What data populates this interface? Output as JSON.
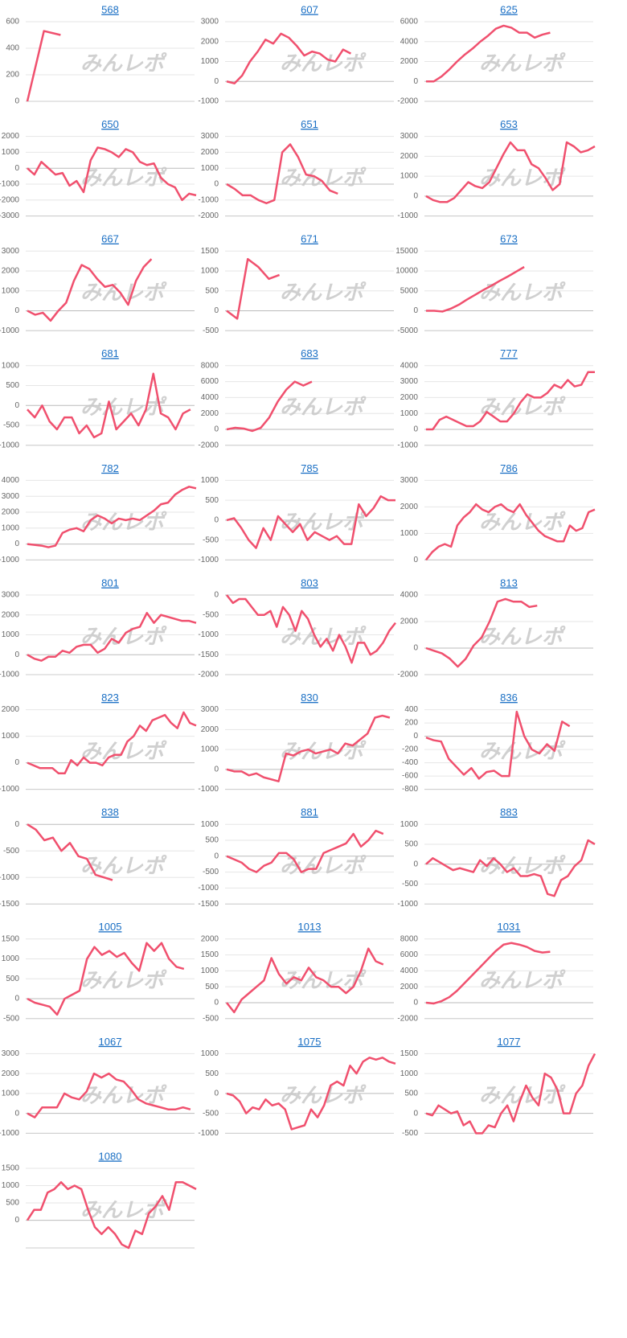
{
  "watermark": "みんレポ",
  "chart_data": [
    {
      "type": "line",
      "title": "568",
      "ylim": [
        0,
        600
      ],
      "yticks": [
        0,
        200,
        400,
        600
      ],
      "grid": true,
      "color": "#f0506e",
      "values": [
        0,
        530,
        500
      ]
    },
    {
      "type": "line",
      "title": "607",
      "ylim": [
        -1000,
        3000
      ],
      "yticks": [
        -1000,
        0,
        1000,
        2000,
        3000
      ],
      "grid": true,
      "color": "#f0506e",
      "values": [
        0,
        -100,
        300,
        1000,
        1500,
        2100,
        1900,
        2400,
        2200,
        1800,
        1300,
        1500,
        1400,
        1100,
        1000,
        1600,
        1400
      ]
    },
    {
      "type": "line",
      "title": "625",
      "ylim": [
        -2000,
        6000
      ],
      "yticks": [
        -2000,
        0,
        2000,
        4000,
        6000
      ],
      "grid": true,
      "color": "#f0506e",
      "values": [
        0,
        0,
        500,
        1200,
        2000,
        2700,
        3300,
        4000,
        4600,
        5300,
        5600,
        5400,
        4900,
        4900,
        4400,
        4700,
        4900
      ]
    },
    {
      "type": "line",
      "title": "650",
      "ylim": [
        -3000,
        2000
      ],
      "yticks": [
        -3000,
        -2000,
        -1000,
        0,
        1000,
        2000
      ],
      "grid": true,
      "color": "#f0506e",
      "values": [
        0,
        -400,
        400,
        0,
        -400,
        -300,
        -1100,
        -800,
        -1500,
        500,
        1300,
        1200,
        1000,
        700,
        1200,
        1000,
        400,
        200,
        300,
        -600,
        -1000,
        -1200,
        -2000,
        -1600,
        -1700
      ]
    },
    {
      "type": "line",
      "title": "651",
      "ylim": [
        -2000,
        3000
      ],
      "yticks": [
        -2000,
        -1000,
        0,
        1000,
        2000,
        3000
      ],
      "grid": true,
      "color": "#f0506e",
      "values": [
        0,
        -300,
        -700,
        -700,
        -1000,
        -1200,
        -1000,
        2000,
        2500,
        1700,
        600,
        500,
        200,
        -400,
        -600
      ]
    },
    {
      "type": "line",
      "title": "653",
      "ylim": [
        -1000,
        3000
      ],
      "yticks": [
        -1000,
        0,
        1000,
        2000,
        3000
      ],
      "grid": true,
      "color": "#f0506e",
      "values": [
        0,
        -200,
        -300,
        -300,
        -100,
        300,
        700,
        500,
        400,
        700,
        1400,
        2100,
        2700,
        2300,
        2300,
        1600,
        1400,
        900,
        300,
        600,
        2700,
        2500,
        2200,
        2300,
        2500
      ]
    },
    {
      "type": "line",
      "title": "667",
      "ylim": [
        -1000,
        3000
      ],
      "yticks": [
        -1000,
        0,
        1000,
        2000,
        3000
      ],
      "grid": true,
      "color": "#f0506e",
      "values": [
        0,
        -200,
        -100,
        -500,
        0,
        400,
        1500,
        2300,
        2100,
        1600,
        1200,
        1300,
        900,
        300,
        1500,
        2200,
        2600
      ]
    },
    {
      "type": "line",
      "title": "671",
      "ylim": [
        -500,
        1500
      ],
      "yticks": [
        -500,
        0,
        500,
        1000,
        1500
      ],
      "grid": true,
      "color": "#f0506e",
      "values": [
        0,
        -200,
        1300,
        1100,
        800,
        900
      ]
    },
    {
      "type": "line",
      "title": "673",
      "ylim": [
        -5000,
        15000
      ],
      "yticks": [
        -5000,
        0,
        5000,
        10000,
        15000
      ],
      "grid": true,
      "color": "#f0506e",
      "values": [
        0,
        0,
        -200,
        500,
        1500,
        2800,
        4000,
        5200,
        6300,
        7500,
        8600,
        9800,
        11000
      ]
    },
    {
      "type": "line",
      "title": "681",
      "ylim": [
        -1000,
        1000
      ],
      "yticks": [
        -1000,
        -500,
        0,
        500,
        1000
      ],
      "grid": true,
      "color": "#f0506e",
      "values": [
        -100,
        -300,
        0,
        -400,
        -600,
        -300,
        -300,
        -700,
        -500,
        -800,
        -700,
        100,
        -600,
        -400,
        -200,
        -500,
        -100,
        800,
        -200,
        -300,
        -600,
        -200,
        -100
      ]
    },
    {
      "type": "line",
      "title": "683",
      "ylim": [
        -2000,
        8000
      ],
      "yticks": [
        -2000,
        0,
        2000,
        4000,
        6000,
        8000
      ],
      "grid": true,
      "color": "#f0506e",
      "values": [
        0,
        200,
        100,
        -200,
        200,
        1500,
        3500,
        5000,
        6000,
        5500,
        6000
      ]
    },
    {
      "type": "line",
      "title": "777",
      "ylim": [
        -1000,
        4000
      ],
      "yticks": [
        -1000,
        0,
        1000,
        2000,
        3000,
        4000
      ],
      "grid": true,
      "color": "#f0506e",
      "values": [
        0,
        0,
        600,
        800,
        600,
        400,
        200,
        200,
        500,
        1100,
        800,
        500,
        500,
        1000,
        1700,
        2200,
        2000,
        2000,
        2300,
        2800,
        2600,
        3100,
        2700,
        2800,
        3600,
        3600
      ]
    },
    {
      "type": "line",
      "title": "782",
      "ylim": [
        -1000,
        4000
      ],
      "yticks": [
        -1000,
        0,
        1000,
        2000,
        3000,
        4000
      ],
      "grid": true,
      "color": "#f0506e",
      "values": [
        0,
        -50,
        -100,
        -200,
        -100,
        700,
        900,
        1000,
        800,
        1500,
        1800,
        1600,
        1300,
        1600,
        1500,
        1600,
        1500,
        1800,
        2100,
        2500,
        2600,
        3100,
        3400,
        3600,
        3500
      ]
    },
    {
      "type": "line",
      "title": "785",
      "ylim": [
        -1000,
        1000
      ],
      "yticks": [
        -1000,
        -500,
        0,
        500,
        1000
      ],
      "grid": true,
      "color": "#f0506e",
      "values": [
        0,
        50,
        -200,
        -500,
        -700,
        -200,
        -500,
        100,
        -100,
        -300,
        -100,
        -500,
        -300,
        -400,
        -500,
        -400,
        -600,
        -600,
        400,
        100,
        300,
        600,
        500,
        500
      ]
    },
    {
      "type": "line",
      "title": "786",
      "ylim": [
        0,
        3000
      ],
      "yticks": [
        0,
        1000,
        2000,
        3000
      ],
      "grid": true,
      "color": "#f0506e",
      "values": [
        0,
        300,
        500,
        600,
        500,
        1300,
        1600,
        1800,
        2100,
        1900,
        1800,
        2000,
        2100,
        1900,
        1800,
        2100,
        1700,
        1400,
        1100,
        900,
        800,
        700,
        700,
        1300,
        1100,
        1200,
        1800,
        1900
      ]
    },
    {
      "type": "line",
      "title": "801",
      "ylim": [
        -1000,
        3000
      ],
      "yticks": [
        -1000,
        0,
        1000,
        2000,
        3000
      ],
      "grid": true,
      "color": "#f0506e",
      "values": [
        0,
        -200,
        -300,
        -100,
        -100,
        200,
        100,
        400,
        500,
        500,
        100,
        300,
        800,
        600,
        1100,
        1300,
        1400,
        2100,
        1600,
        2000,
        1900,
        1800,
        1700,
        1700,
        1600
      ]
    },
    {
      "type": "line",
      "title": "803",
      "ylim": [
        -2000,
        0
      ],
      "yticks": [
        -2000,
        -1500,
        -1000,
        -500,
        0
      ],
      "grid": true,
      "color": "#f0506e",
      "values": [
        0,
        -200,
        -100,
        -100,
        -300,
        -500,
        -500,
        -400,
        -800,
        -300,
        -500,
        -900,
        -400,
        -600,
        -1000,
        -1300,
        -1100,
        -1400,
        -1000,
        -1300,
        -1700,
        -1200,
        -1200,
        -1500,
        -1400,
        -1200,
        -900,
        -700
      ]
    },
    {
      "type": "line",
      "title": "813",
      "ylim": [
        -2000,
        4000
      ],
      "yticks": [
        -2000,
        0,
        2000,
        4000
      ],
      "grid": true,
      "color": "#f0506e",
      "values": [
        0,
        -200,
        -400,
        -800,
        -1400,
        -800,
        200,
        800,
        2000,
        3500,
        3700,
        3500,
        3500,
        3100,
        3200
      ]
    },
    {
      "type": "line",
      "title": "823",
      "ylim": [
        -1000,
        2000
      ],
      "yticks": [
        -1000,
        0,
        1000,
        2000
      ],
      "grid": true,
      "color": "#f0506e",
      "values": [
        0,
        -100,
        -200,
        -200,
        -200,
        -400,
        -400,
        100,
        -100,
        200,
        0,
        0,
        -100,
        200,
        300,
        300,
        800,
        1000,
        1400,
        1200,
        1600,
        1700,
        1800,
        1500,
        1300,
        1900,
        1500,
        1400
      ]
    },
    {
      "type": "line",
      "title": "830",
      "ylim": [
        -1000,
        3000
      ],
      "yticks": [
        -1000,
        0,
        1000,
        2000,
        3000
      ],
      "grid": true,
      "color": "#f0506e",
      "values": [
        0,
        -100,
        -100,
        -300,
        -200,
        -400,
        -500,
        -600,
        800,
        700,
        900,
        1000,
        800,
        900,
        1000,
        800,
        1300,
        1200,
        1500,
        1800,
        2600,
        2700,
        2600
      ]
    },
    {
      "type": "line",
      "title": "836",
      "ylim": [
        -800,
        400
      ],
      "yticks": [
        -800,
        -600,
        -400,
        -200,
        0,
        200,
        400
      ],
      "grid": true,
      "color": "#f0506e",
      "values": [
        -20,
        -60,
        -80,
        -340,
        -460,
        -580,
        -480,
        -640,
        -540,
        -520,
        -600,
        -600,
        370,
        0,
        -200,
        -260,
        -120,
        -220,
        220,
        150
      ]
    },
    {
      "type": "line",
      "title": "838",
      "ylim": [
        -1500,
        0
      ],
      "yticks": [
        -1500,
        -1000,
        -500,
        0
      ],
      "grid": true,
      "color": "#f0506e",
      "values": [
        0,
        -100,
        -300,
        -250,
        -500,
        -350,
        -600,
        -650,
        -950,
        -1000,
        -1050
      ]
    },
    {
      "type": "line",
      "title": "881",
      "ylim": [
        -1500,
        1000
      ],
      "yticks": [
        -1500,
        -1000,
        -500,
        0,
        500,
        1000
      ],
      "grid": true,
      "color": "#f0506e",
      "values": [
        0,
        -100,
        -200,
        -400,
        -500,
        -300,
        -200,
        100,
        100,
        -100,
        -500,
        -400,
        -400,
        100,
        200,
        300,
        400,
        700,
        300,
        500,
        800,
        700
      ]
    },
    {
      "type": "line",
      "title": "883",
      "ylim": [
        -1000,
        1000
      ],
      "yticks": [
        -1000,
        -500,
        0,
        500,
        1000
      ],
      "grid": true,
      "color": "#f0506e",
      "values": [
        0,
        150,
        50,
        -50,
        -150,
        -100,
        -150,
        -200,
        100,
        -50,
        150,
        0,
        -200,
        -100,
        -300,
        -300,
        -250,
        -300,
        -750,
        -800,
        -400,
        -300,
        -50,
        100,
        600,
        500
      ]
    },
    {
      "type": "line",
      "title": "1005",
      "ylim": [
        -500,
        1500
      ],
      "yticks": [
        -500,
        0,
        500,
        1000,
        1500
      ],
      "grid": true,
      "color": "#f0506e",
      "values": [
        0,
        -100,
        -150,
        -200,
        -400,
        0,
        100,
        200,
        1000,
        1300,
        1100,
        1200,
        1050,
        1150,
        900,
        700,
        1400,
        1200,
        1400,
        1000,
        800,
        750
      ]
    },
    {
      "type": "line",
      "title": "1013",
      "ylim": [
        -500,
        2000
      ],
      "yticks": [
        -500,
        0,
        500,
        1000,
        1500,
        2000
      ],
      "grid": true,
      "color": "#f0506e",
      "values": [
        0,
        -300,
        100,
        300,
        500,
        700,
        1400,
        900,
        600,
        800,
        700,
        1100,
        800,
        700,
        500,
        500,
        300,
        500,
        1000,
        1700,
        1300,
        1200
      ]
    },
    {
      "type": "line",
      "title": "1031",
      "ylim": [
        -2000,
        8000
      ],
      "yticks": [
        -2000,
        0,
        2000,
        4000,
        6000,
        8000
      ],
      "grid": true,
      "color": "#f0506e",
      "values": [
        0,
        -100,
        200,
        700,
        1500,
        2500,
        3500,
        4500,
        5500,
        6500,
        7300,
        7500,
        7300,
        7000,
        6500,
        6300,
        6400
      ]
    },
    {
      "type": "line",
      "title": "1067",
      "ylim": [
        -1000,
        3000
      ],
      "yticks": [
        -1000,
        0,
        1000,
        2000,
        3000
      ],
      "grid": true,
      "color": "#f0506e",
      "values": [
        0,
        -200,
        300,
        300,
        300,
        1000,
        800,
        700,
        1100,
        2000,
        1800,
        2000,
        1700,
        1600,
        1200,
        700,
        500,
        400,
        300,
        200,
        200,
        300,
        200
      ]
    },
    {
      "type": "line",
      "title": "1075",
      "ylim": [
        -1000,
        1000
      ],
      "yticks": [
        -1000,
        -500,
        0,
        500,
        1000
      ],
      "grid": true,
      "color": "#f0506e",
      "values": [
        0,
        -50,
        -200,
        -500,
        -350,
        -400,
        -150,
        -300,
        -250,
        -400,
        -900,
        -850,
        -800,
        -400,
        -600,
        -300,
        200,
        300,
        200,
        700,
        500,
        800,
        900,
        850,
        900,
        800,
        750
      ]
    },
    {
      "type": "line",
      "title": "1077",
      "ylim": [
        -500,
        1500
      ],
      "yticks": [
        -500,
        0,
        500,
        1000,
        1500
      ],
      "grid": true,
      "color": "#f0506e",
      "values": [
        0,
        -50,
        200,
        100,
        0,
        50,
        -300,
        -200,
        -500,
        -500,
        -300,
        -350,
        0,
        200,
        -200,
        300,
        700,
        400,
        200,
        1000,
        900,
        600,
        0,
        0,
        500,
        700,
        1200,
        1500
      ]
    },
    {
      "type": "line",
      "title": "1080",
      "ylim": [
        -800,
        1500
      ],
      "yticks": [
        0,
        500,
        1000,
        1500
      ],
      "grid": true,
      "color": "#f0506e",
      "values": [
        0,
        300,
        300,
        800,
        900,
        1100,
        900,
        1000,
        900,
        300,
        -200,
        -400,
        -200,
        -400,
        -700,
        -800,
        -300,
        -400,
        200,
        400,
        700,
        300,
        1100,
        1100,
        1000,
        900
      ]
    }
  ]
}
